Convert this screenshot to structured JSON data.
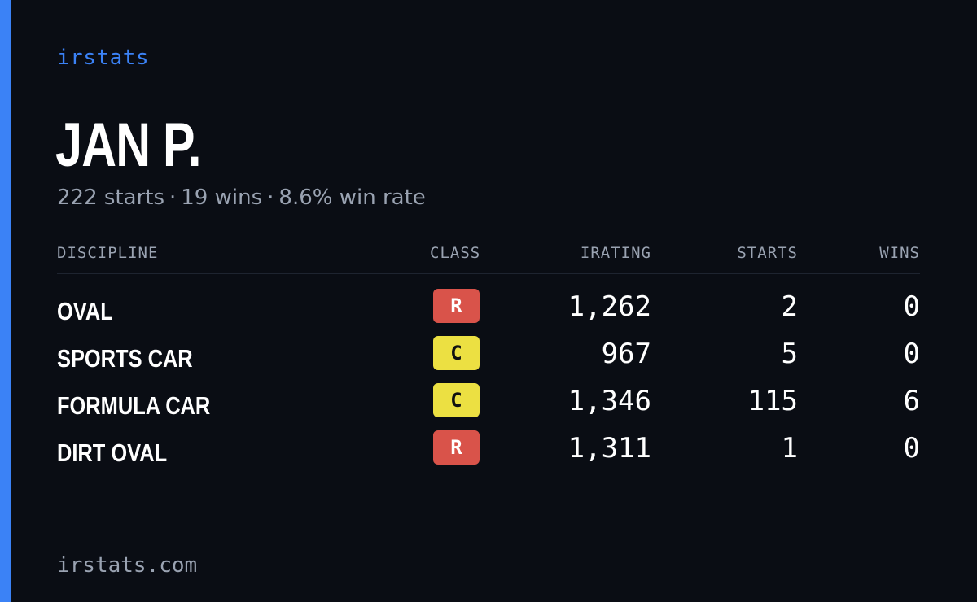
{
  "brand": "irstats",
  "driver": {
    "name": "JAN P.",
    "starts": "222 starts",
    "wins": "19 wins",
    "win_rate": "8.6% win rate",
    "separator": "·"
  },
  "table": {
    "headers": {
      "discipline": "DISCIPLINE",
      "class": "CLASS",
      "irating": "IRATING",
      "starts": "STARTS",
      "wins": "WINS"
    },
    "rows": [
      {
        "discipline": "OVAL",
        "class": "R",
        "class_color": "#d9534a",
        "irating": "1,262",
        "starts": "2",
        "wins": "0"
      },
      {
        "discipline": "SPORTS CAR",
        "class": "C",
        "class_color": "#ece042",
        "irating": "967",
        "starts": "5",
        "wins": "0"
      },
      {
        "discipline": "FORMULA CAR",
        "class": "C",
        "class_color": "#ece042",
        "irating": "1,346",
        "starts": "115",
        "wins": "6"
      },
      {
        "discipline": "DIRT OVAL",
        "class": "R",
        "class_color": "#d9534a",
        "irating": "1,311",
        "starts": "1",
        "wins": "0"
      }
    ]
  },
  "footer": "irstats.com",
  "colors": {
    "background": "#0a0d14",
    "accent": "#3b82f6",
    "muted_text": "#9aa3b2"
  }
}
